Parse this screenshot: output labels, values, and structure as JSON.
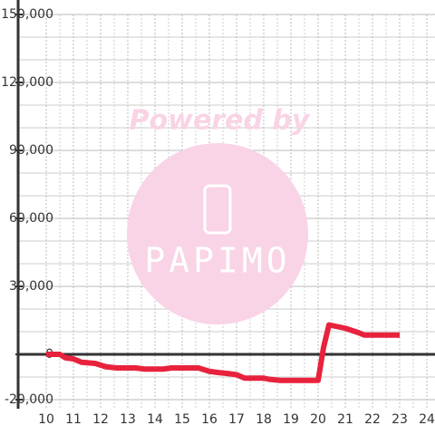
{
  "chart_data": {
    "type": "line",
    "watermark": {
      "line1": "Powered by",
      "line2": "PAPIMO"
    },
    "xlim": [
      9,
      24.3
    ],
    "xticks": [
      10,
      11,
      12,
      13,
      14,
      15,
      16,
      17,
      18,
      19,
      20,
      21,
      22,
      23,
      24
    ],
    "ylim": [
      -24000,
      150000
    ],
    "yticks": [
      {
        "value": -20000,
        "label": "-20,000"
      },
      {
        "value": 0,
        "label": "0"
      },
      {
        "value": 30000,
        "label": "30,000"
      },
      {
        "value": 60000,
        "label": "60,000"
      },
      {
        "value": 90000,
        "label": "90,000"
      },
      {
        "value": 120000,
        "label": "120,000"
      },
      {
        "value": 150000,
        "label": "150,000"
      }
    ],
    "y_minor_grid": [
      -10000,
      10000,
      20000,
      40000,
      50000,
      70000,
      80000,
      100000,
      110000,
      130000,
      140000
    ],
    "grid": true,
    "series": [
      {
        "color": "#e8223c",
        "x": [
          10,
          10.5,
          10.7,
          11,
          11.3,
          11.8,
          12.2,
          12.6,
          13.3,
          13.6,
          14.3,
          14.6,
          15.6,
          16,
          16.3,
          16.7,
          17,
          17.3,
          18,
          18.2,
          18.6,
          19.3,
          20,
          20.2,
          20.4,
          21,
          21.5,
          21.7,
          23
        ],
        "values": [
          0,
          0,
          -1500,
          -2000,
          -3500,
          -4000,
          -5500,
          -6000,
          -6000,
          -6500,
          -6500,
          -6000,
          -6000,
          -7500,
          -8000,
          -8500,
          -9000,
          -10500,
          -10500,
          -11000,
          -11500,
          -11500,
          -11500,
          3000,
          13000,
          11500,
          9500,
          8500,
          8500
        ]
      }
    ]
  }
}
